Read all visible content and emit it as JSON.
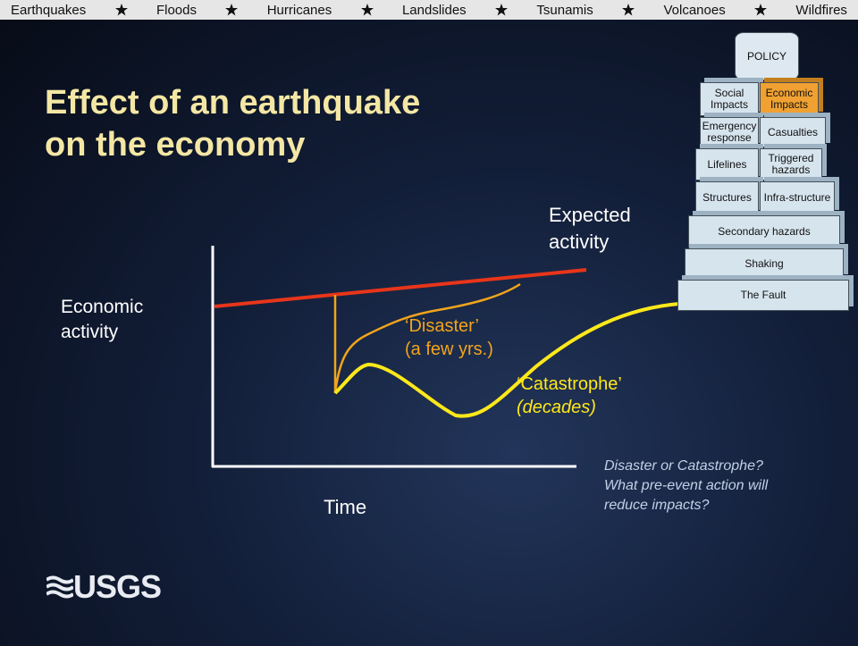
{
  "nav": [
    "Earthquakes",
    "Floods",
    "Hurricanes",
    "Landslides",
    "Tsunamis",
    "Volcanoes",
    "Wildfires"
  ],
  "title": [
    "Effect of an earthquake",
    "on the economy"
  ],
  "graph": {
    "y_label": [
      "Economic",
      "activity"
    ],
    "x_label": "Time",
    "expected_label": [
      "Expected",
      "activity"
    ],
    "disaster_label": [
      "‘Disaster’",
      "(a few yrs.)"
    ],
    "catastrophe_label": [
      "‘Catastrophe’",
      "(decades)"
    ]
  },
  "question": [
    "Disaster or Catastrophe?",
    "What pre-event action will",
    "reduce impacts?"
  ],
  "pyramid": [
    [
      "POLICY"
    ],
    [
      "Social Impacts",
      "Economic Impacts"
    ],
    [
      "Emergency response",
      "Casualties"
    ],
    [
      "Lifelines",
      "Triggered hazards"
    ],
    [
      "Structures",
      "Infra-structure"
    ],
    [
      "Secondary hazards"
    ],
    [
      "Shaking"
    ],
    [
      "The Fault"
    ]
  ],
  "logo": "USGS"
}
